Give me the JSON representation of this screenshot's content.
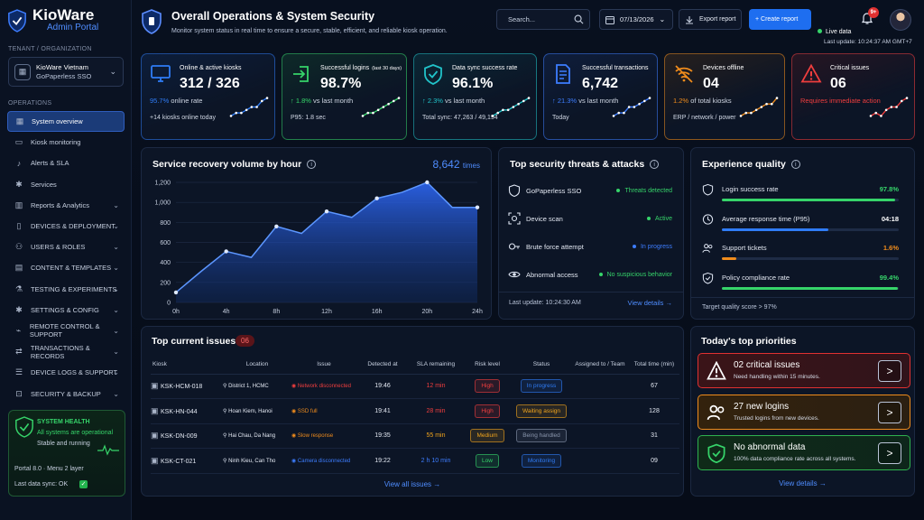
{
  "brand": {
    "name": "KioWare",
    "sub": "Admin Portal"
  },
  "tenant": {
    "section": "TENANT / ORGANIZATION",
    "name": "KioWare Vietnam",
    "sub": "GoPaperless SSO"
  },
  "nav": {
    "section": "OPERATIONS",
    "items": [
      {
        "label": "System overview",
        "icon": "grid-icon"
      },
      {
        "label": "Kiosk monitoring",
        "icon": "monitor-icon"
      },
      {
        "label": "Alerts & SLA",
        "icon": "bell-icon"
      },
      {
        "label": "Services",
        "icon": "gear-icon"
      },
      {
        "label": "Reports & Analytics",
        "icon": "chart-icon"
      },
      {
        "label": "DEVICES & DEPLOYMENT",
        "icon": "device-icon"
      },
      {
        "label": "USERS & ROLES",
        "icon": "users-icon"
      },
      {
        "label": "CONTENT & TEMPLATES",
        "icon": "document-icon"
      },
      {
        "label": "TESTING & EXPERIMENTS",
        "icon": "flask-icon"
      },
      {
        "label": "SETTINGS & CONFIG",
        "icon": "gear-icon"
      },
      {
        "label": "REMOTE CONTROL & SUPPORT",
        "icon": "remote-icon"
      },
      {
        "label": "TRANSACTIONS & RECORDS",
        "icon": "transfer-icon"
      },
      {
        "label": "DEVICE LOGS & SUPPORT",
        "icon": "log-icon"
      },
      {
        "label": "SECURITY & BACKUP",
        "icon": "lock-icon"
      }
    ]
  },
  "health": {
    "title": "SYSTEM HEALTH",
    "status": "All systems are operational",
    "state": "Stable and running",
    "version": "Portal 8.0  ·  Menu 2 layer",
    "sync": "Last data sync:  OK"
  },
  "header": {
    "title": "Overall Operations & System Security",
    "subtitle": "Monitor system status in real time to ensure a secure, stable, efficient, and reliable kiosk operation.",
    "search_placeholder": "Search...",
    "date": "07/13/2026",
    "export": "Export report",
    "create": "+ Create report",
    "badge": "9+",
    "live": "Live data",
    "last_update": "Last update: 10:24:37 AM GMT+7"
  },
  "kpis": [
    {
      "label": "Online & active kiosks",
      "value": "312 / 326",
      "sub": "95.7%",
      "sub_rest": " online rate",
      "sub2": "+14 kiosks online today",
      "color": "#2f7cf6",
      "icon": "monitor-icon",
      "trend": [
        2,
        3,
        3,
        4,
        5,
        5,
        7,
        8
      ]
    },
    {
      "label": "Successful logins",
      "label_small": "(last 30 days)",
      "value": "98.7%",
      "sub": "↑ 1.8%",
      "sub_rest": " vs last month",
      "sub2": "P95: 1.8 sec",
      "color": "#36d46a",
      "icon": "login-icon",
      "trend": [
        2,
        3,
        3,
        4,
        5,
        6,
        7,
        8
      ]
    },
    {
      "label": "Data sync success rate",
      "value": "96.1%",
      "sub": "↑ 2.3%",
      "sub_rest": " vs last month",
      "sub2": "Total sync: 47,263 / 49,194",
      "color": "#21c3c9",
      "icon": "shield-check-icon",
      "trend": [
        2,
        3,
        4,
        4,
        5,
        6,
        7,
        8
      ]
    },
    {
      "label": "Successful transactions",
      "value": "6,742",
      "sub": "↑ 21.3%",
      "sub_rest": " vs last month",
      "sub2": "Today",
      "color": "#3d7dff",
      "icon": "document-icon",
      "trend": [
        2,
        3,
        3,
        5,
        5,
        6,
        7,
        8
      ]
    },
    {
      "label": "Devices offline",
      "value": "04",
      "sub": "1.2%",
      "sub_rest": " of total kiosks",
      "sub2": "ERP / network / power",
      "color": "#f08c1c",
      "icon": "wifi-off-icon",
      "trend": [
        2,
        3,
        3,
        4,
        5,
        6,
        6,
        8
      ]
    },
    {
      "label": "Critical issues",
      "value": "06",
      "sub": "Requires immediate action",
      "sub_rest": "",
      "sub2": "",
      "color": "#f03e3e",
      "icon": "alert-icon",
      "trend": [
        2,
        3,
        2,
        4,
        5,
        5,
        7,
        8
      ]
    }
  ],
  "recovery": {
    "title": "Service recovery volume by hour",
    "total": "8,642",
    "unit": "times"
  },
  "chart_data": {
    "type": "area",
    "title": "Service recovery volume by hour",
    "x": [
      "0h",
      "2h",
      "4h",
      "6h",
      "8h",
      "10h",
      "12h",
      "14h",
      "16h",
      "18h",
      "20h",
      "22h",
      "24h"
    ],
    "values": [
      100,
      310,
      510,
      450,
      760,
      690,
      910,
      850,
      1040,
      1100,
      1200,
      950,
      950
    ],
    "xticks": [
      "0h",
      "4h",
      "8h",
      "12h",
      "16h",
      "20h",
      "24h"
    ],
    "yticks": [
      "0",
      "100",
      "200",
      "300",
      "400",
      "500",
      "600",
      "700",
      "800",
      "900",
      "1,000",
      "1,200"
    ],
    "ylim": [
      0,
      1200
    ]
  },
  "chart_points": [
    0,
    2,
    4,
    6,
    8,
    10,
    12,
    14,
    16,
    18,
    20,
    22,
    24
  ],
  "threats": {
    "title": "Top security threats & attacks",
    "items": [
      {
        "label": "GoPaperless SSO",
        "status": "Threats detected",
        "color": "#36d46a",
        "icon": "shield-icon"
      },
      {
        "label": "Device scan",
        "status": "Active",
        "color": "#36d46a",
        "icon": "scan-icon"
      },
      {
        "label": "Brute force attempt",
        "status": "In progress",
        "color": "#3d7dff",
        "icon": "key-icon"
      },
      {
        "label": "Abnormal access",
        "status": "No suspicious behavior",
        "color": "#36d46a",
        "icon": "eye-icon"
      }
    ],
    "last_update": "Last update: 10:24:30 AM",
    "view": "View details"
  },
  "experience": {
    "title": "Experience quality",
    "items": [
      {
        "label": "Login success rate",
        "value": "97.8%",
        "pct": 97.8,
        "color": "#36d46a",
        "icon": "shield-icon"
      },
      {
        "label": "Average response time (P95)",
        "value": "04:18",
        "pct": 60,
        "color": "#2f7cf6",
        "icon": "clock-icon"
      },
      {
        "label": "Support tickets",
        "value": "1.6%",
        "pct": 8,
        "color": "#f08c1c",
        "icon": "users-icon"
      },
      {
        "label": "Policy compliance rate",
        "value": "99.4%",
        "pct": 99.4,
        "color": "#36d46a",
        "icon": "shield-check-icon"
      }
    ],
    "target": "Target quality score > 97%"
  },
  "issues": {
    "title": "Top current issues",
    "count": "06",
    "columns": [
      "Kiosk",
      "Location",
      "Issue",
      "Detected at",
      "SLA remaining",
      "Risk level",
      "Status",
      "Assigned to / Team",
      "Total time (min)"
    ],
    "rows": [
      {
        "kiosk": "KSK-HCM-018",
        "location": "District 1, HCMC",
        "issue": "Network disconnected",
        "issue_color": "#f03e3e",
        "detected": "19:46",
        "sla": "12 min",
        "sla_color": "#f03e3e",
        "risk": "High",
        "risk_color": "#f03e3e",
        "status": "In progress",
        "status_color": "#2f7cf6",
        "assigned": "",
        "total": "67"
      },
      {
        "kiosk": "KSK-HN-044",
        "location": "Hoan Kiem, Hanoi",
        "issue": "SSD full",
        "issue_color": "#f08c1c",
        "detected": "19:41",
        "sla": "28 min",
        "sla_color": "#f03e3e",
        "risk": "High",
        "risk_color": "#f03e3e",
        "status": "Waiting assign",
        "status_color": "#f0a41c",
        "assigned": "",
        "total": "128"
      },
      {
        "kiosk": "KSK-DN-009",
        "location": "Hai Chau, Da Nang",
        "issue": "Slow response",
        "issue_color": "#f08c1c",
        "detected": "19:35",
        "sla": "55 min",
        "sla_color": "#f0a41c",
        "risk": "Medium",
        "risk_color": "#f0a41c",
        "status": "Being handled",
        "status_color": "#8a96ad",
        "assigned": "",
        "total": "31"
      },
      {
        "kiosk": "KSK-CT-021",
        "location": "Ninh Kieu, Can Tho",
        "issue": "Camera disconnected",
        "issue_color": "#3d7dff",
        "detected": "19:22",
        "sla": "2 h 10 min",
        "sla_color": "#3d7dff",
        "risk": "Low",
        "risk_color": "#36d46a",
        "status": "Monitoring",
        "status_color": "#2f7cf6",
        "assigned": "",
        "total": "09"
      }
    ],
    "view_all": "View all issues"
  },
  "priorities": {
    "title": "Today's top priorities",
    "items": [
      {
        "title": "02 critical issues",
        "sub": "Need handling within 15 minutes.",
        "color": "#e03131",
        "bg": "#3a1418",
        "icon": "alert-icon"
      },
      {
        "title": "27 new logins",
        "sub": "Trusted logins from new devices.",
        "color": "#f08c1c",
        "bg": "#33220d",
        "icon": "users-icon"
      },
      {
        "title": "No abnormal data",
        "sub": "100% data compliance rate across all systems.",
        "color": "#2fb24e",
        "bg": "#0f2a18",
        "icon": "shield-check-icon"
      }
    ],
    "view": "View details"
  }
}
